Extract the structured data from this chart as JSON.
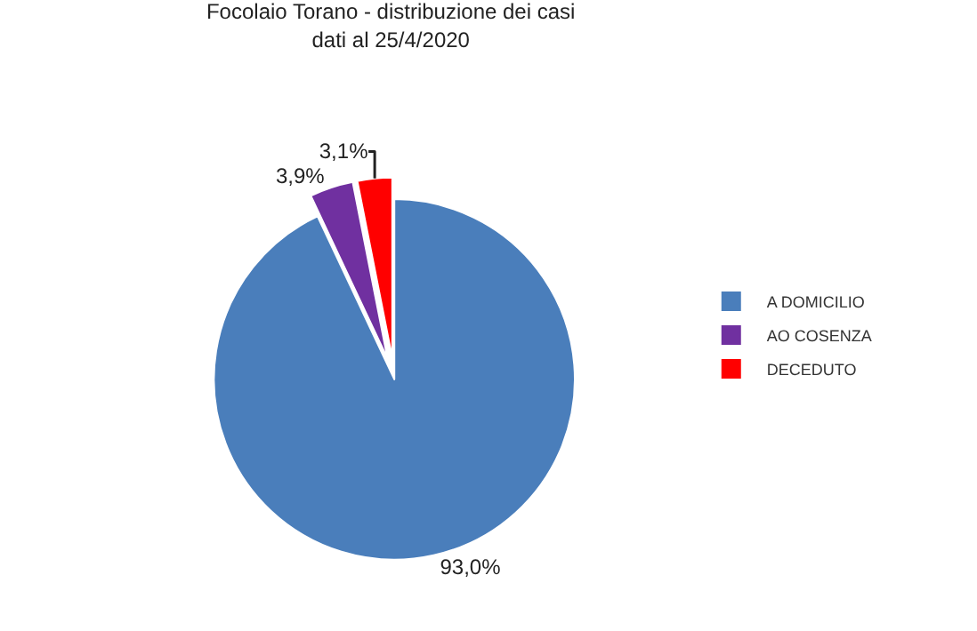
{
  "chart_data": {
    "type": "pie",
    "title": "Focolaio Torano - distribuzione dei casi\ndati al 25/4/2020",
    "categories": [
      "A DOMICILIO",
      "AO COSENZA",
      "DECEDUTO"
    ],
    "values": [
      93.0,
      3.9,
      3.1
    ],
    "value_labels": [
      "93,0%",
      "3,9%",
      "3,1%"
    ],
    "colors": [
      "#4a7ebb",
      "#7030a0",
      "#ff0000"
    ],
    "legend": "right"
  }
}
